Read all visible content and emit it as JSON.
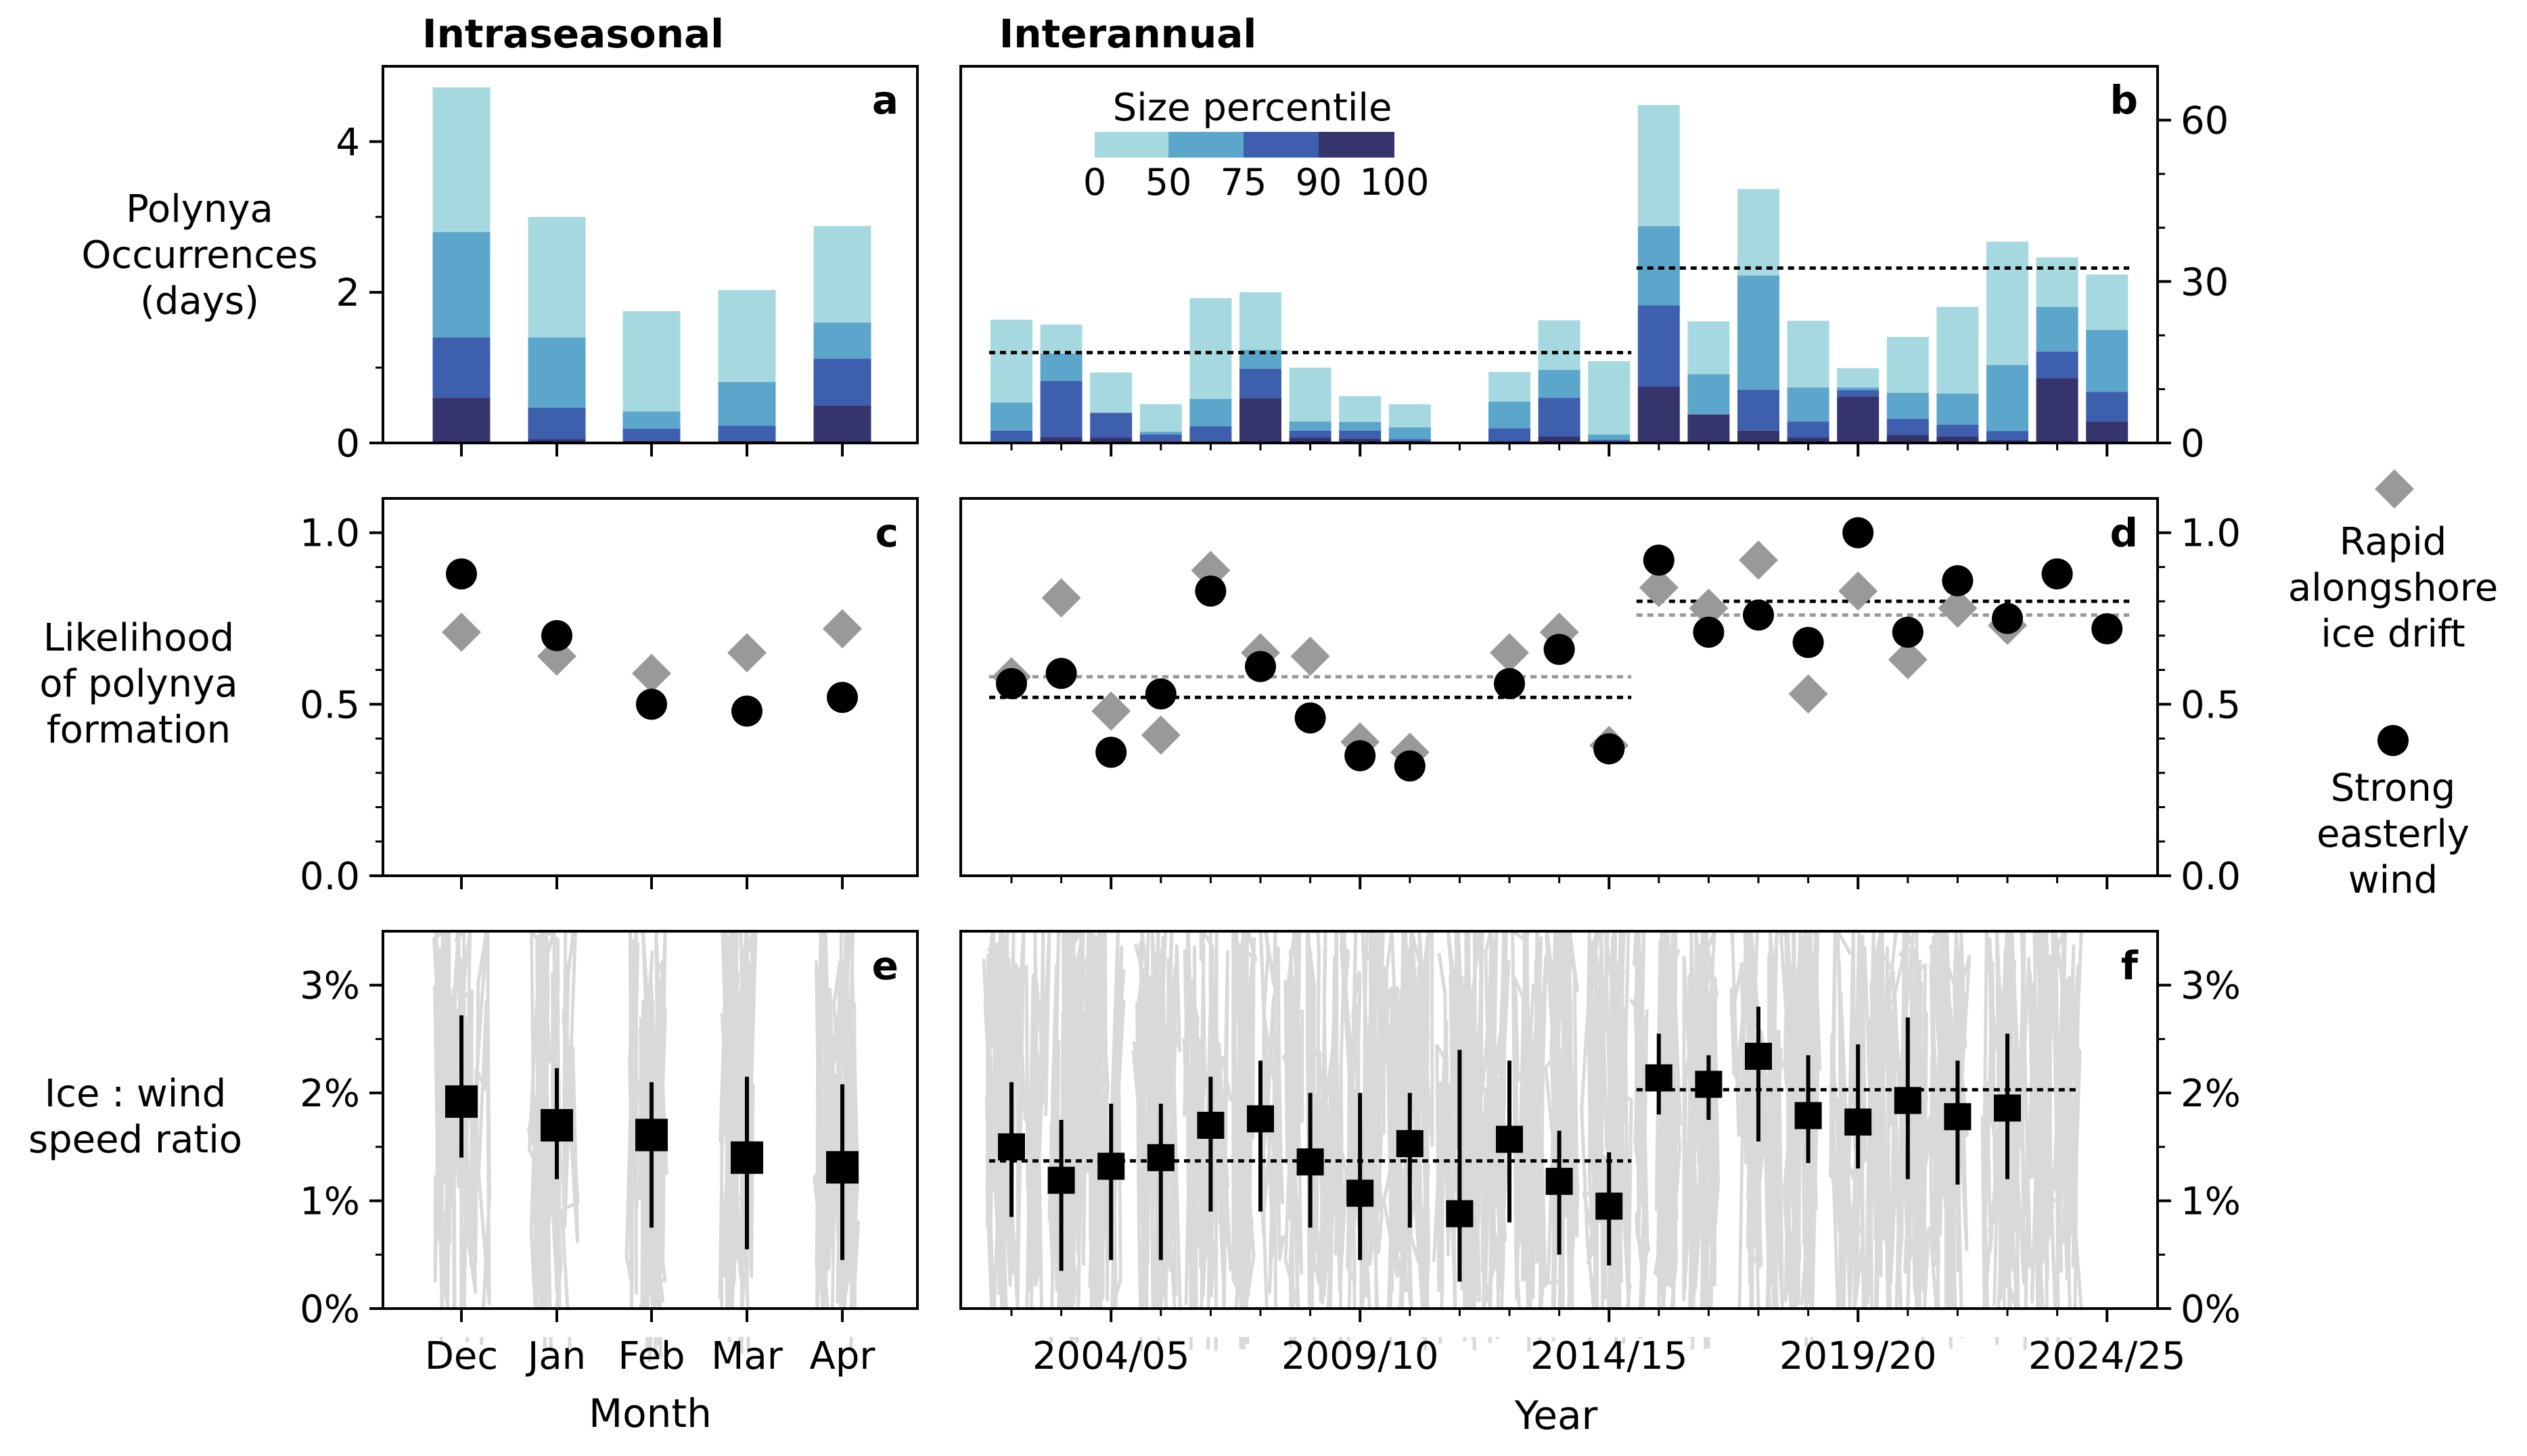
{
  "headers": {
    "left": "Intraseasonal",
    "right": "Interannual"
  },
  "panel_letters": [
    "a",
    "b",
    "c",
    "d",
    "e",
    "f"
  ],
  "row_labels": {
    "occurrence": [
      "Polynya",
      "Occurrences",
      "(days)"
    ],
    "likelihood": [
      "Likelihood",
      "of polynya",
      "formation"
    ],
    "ratio": [
      "Ice : wind",
      "speed ratio"
    ]
  },
  "legend": {
    "size_title": "Size percentile",
    "size_ticks": [
      "0",
      "50",
      "75",
      "90",
      "100"
    ],
    "drift_label": [
      "Rapid",
      "alongshore",
      "ice drift"
    ],
    "wind_label": [
      "Strong",
      "easterly",
      "wind"
    ]
  },
  "axes": {
    "month_xlabel": "Month",
    "year_xlabel": "Year",
    "month_ticks": [
      "Dec",
      "Jan",
      "Feb",
      "Mar",
      "Apr"
    ],
    "year_ticks": [
      "2004/05",
      "2009/10",
      "2014/15",
      "2019/20",
      "2024/25"
    ],
    "a_yticks": [
      "0",
      "2",
      "4"
    ],
    "b_yticks": [
      "0",
      "30",
      "60"
    ],
    "cd_yticks": [
      "0.0",
      "0.5",
      "1.0"
    ],
    "ef_yticks": [
      "0%",
      "1%",
      "2%",
      "3%"
    ]
  },
  "colors": {
    "p0_50": "#a6d9df",
    "p50_75": "#5ca5cb",
    "p75_90": "#3d5fae",
    "p90_100": "#35346d",
    "drift": "#999999",
    "wind": "#000000",
    "spread": "#d9d9d9"
  },
  "chart_data": [
    {
      "panel": "a",
      "type": "bar",
      "stacked": true,
      "categories": [
        "Dec",
        "Jan",
        "Feb",
        "Mar",
        "Apr"
      ],
      "ylim": [
        0,
        5
      ],
      "series": [
        {
          "name": "90-100",
          "values": [
            0.6,
            0.05,
            0.03,
            0.03,
            0.5
          ]
        },
        {
          "name": "75-90",
          "values": [
            0.8,
            0.42,
            0.16,
            0.2,
            0.62
          ]
        },
        {
          "name": "50-75",
          "values": [
            1.4,
            0.93,
            0.23,
            0.58,
            0.48
          ]
        },
        {
          "name": "0-50",
          "values": [
            1.92,
            1.6,
            1.33,
            1.22,
            1.28
          ]
        }
      ]
    },
    {
      "panel": "b",
      "type": "bar",
      "stacked": true,
      "x": [
        2002,
        2003,
        2004,
        2005,
        2006,
        2007,
        2008,
        2009,
        2010,
        2011,
        2012,
        2013,
        2014,
        2015,
        2016,
        2017,
        2018,
        2019,
        2020,
        2021,
        2022,
        2023,
        2024
      ],
      "ylim": [
        0,
        70
      ],
      "series": [
        {
          "name": "90-100",
          "values": [
            0.3,
            1.1,
            1.0,
            0.3,
            0.3,
            8.3,
            1.0,
            0.8,
            0.4,
            0,
            0,
            1.2,
            0,
            10.5,
            5.3,
            2.3,
            1.0,
            8.6,
            1.5,
            1.2,
            0.5,
            12.0,
            4.0
          ]
        },
        {
          "name": "75-90",
          "values": [
            2.0,
            10.4,
            4.6,
            1.3,
            2.8,
            5.5,
            1.3,
            1.5,
            0.3,
            0,
            2.7,
            7.2,
            0.6,
            15.1,
            0,
            7.6,
            3.0,
            1.2,
            3.0,
            2.2,
            1.7,
            5.0,
            5.5
          ]
        },
        {
          "name": "50-75",
          "values": [
            5.2,
            5.1,
            0,
            0.5,
            5.1,
            3.5,
            1.7,
            1.6,
            2.2,
            0,
            5.0,
            5.2,
            1.0,
            14.7,
            7.5,
            21.2,
            6.3,
            0.5,
            4.8,
            5.8,
            12.3,
            8.3,
            11.5
          ]
        },
        {
          "name": "0-50",
          "values": [
            15.4,
            5.4,
            7.5,
            5.1,
            18.7,
            10.7,
            10.0,
            4.8,
            4.3,
            0,
            5.5,
            9.2,
            13.6,
            22.5,
            9.8,
            16.1,
            12.4,
            3.6,
            10.4,
            16.1,
            22.9,
            9.2,
            10.3
          ]
        }
      ],
      "reference_lines": [
        {
          "x_range": [
            2002,
            2014
          ],
          "value": 16.8
        },
        {
          "x_range": [
            2015,
            2024
          ],
          "value": 32.5
        }
      ]
    },
    {
      "panel": "c",
      "type": "scatter",
      "categories": [
        "Dec",
        "Jan",
        "Feb",
        "Mar",
        "Apr"
      ],
      "ylim": [
        0,
        1.1
      ],
      "series": [
        {
          "name": "Rapid alongshore ice drift",
          "values": [
            0.71,
            0.64,
            0.59,
            0.65,
            0.72
          ]
        },
        {
          "name": "Strong easterly wind",
          "values": [
            0.88,
            0.7,
            0.5,
            0.48,
            0.52
          ]
        }
      ]
    },
    {
      "panel": "d",
      "type": "scatter",
      "x": [
        2002,
        2003,
        2004,
        2005,
        2006,
        2007,
        2008,
        2009,
        2010,
        2011,
        2012,
        2013,
        2014,
        2015,
        2016,
        2017,
        2018,
        2019,
        2020,
        2021,
        2022,
        2023,
        2024
      ],
      "ylim": [
        0,
        1.1
      ],
      "series": [
        {
          "name": "Rapid alongshore ice drift",
          "values": [
            0.58,
            0.81,
            0.48,
            0.41,
            0.89,
            0.65,
            0.64,
            0.39,
            0.36,
            null,
            0.65,
            0.71,
            0.38,
            0.84,
            0.78,
            0.92,
            0.53,
            0.83,
            0.63,
            0.78,
            0.73,
            null,
            null
          ]
        },
        {
          "name": "Strong easterly wind",
          "values": [
            0.56,
            0.59,
            0.36,
            0.53,
            0.83,
            0.61,
            0.46,
            0.35,
            0.32,
            null,
            0.56,
            0.66,
            0.37,
            0.92,
            0.71,
            0.76,
            0.68,
            1.0,
            0.71,
            0.86,
            0.75,
            0.88,
            0.72
          ]
        }
      ],
      "reference_lines": [
        {
          "series": "Rapid alongshore ice drift",
          "x_range": [
            2002,
            2014
          ],
          "value": 0.58
        },
        {
          "series": "Strong easterly wind",
          "x_range": [
            2002,
            2014
          ],
          "value": 0.52
        },
        {
          "series": "Rapid alongshore ice drift",
          "x_range": [
            2015,
            2024
          ],
          "value": 0.76
        },
        {
          "series": "Strong easterly wind",
          "x_range": [
            2015,
            2024
          ],
          "value": 0.8
        }
      ]
    },
    {
      "panel": "e",
      "type": "scatter",
      "categories": [
        "Dec",
        "Jan",
        "Feb",
        "Mar",
        "Apr"
      ],
      "ylim": [
        0,
        3.5
      ],
      "unit": "%",
      "median": [
        1.92,
        1.7,
        1.61,
        1.4,
        1.31
      ],
      "lower": [
        1.4,
        1.2,
        0.75,
        0.55,
        0.45
      ],
      "upper": [
        2.72,
        2.23,
        2.1,
        2.15,
        2.08
      ]
    },
    {
      "panel": "f",
      "type": "scatter",
      "x": [
        2002,
        2003,
        2004,
        2005,
        2006,
        2007,
        2008,
        2009,
        2010,
        2011,
        2012,
        2013,
        2014,
        2015,
        2016,
        2017,
        2018,
        2019,
        2020,
        2021,
        2022,
        2023
      ],
      "ylim": [
        0,
        3.5
      ],
      "unit": "%",
      "median": [
        1.5,
        1.19,
        1.32,
        1.4,
        1.7,
        1.76,
        1.36,
        1.07,
        1.53,
        0.88,
        1.57,
        1.18,
        0.95,
        2.14,
        2.08,
        2.34,
        1.79,
        1.73,
        1.93,
        1.78,
        1.86,
        null
      ],
      "lower": [
        0.85,
        0.35,
        0.45,
        0.45,
        0.9,
        0.9,
        0.75,
        0.45,
        0.75,
        0.25,
        0.8,
        0.5,
        0.4,
        1.8,
        1.75,
        1.55,
        1.35,
        1.3,
        1.2,
        1.15,
        1.2,
        null
      ],
      "upper": [
        2.1,
        1.75,
        1.9,
        1.9,
        2.15,
        2.3,
        2.0,
        2.0,
        2.0,
        2.4,
        2.3,
        1.65,
        1.45,
        2.55,
        2.35,
        2.8,
        2.35,
        2.45,
        2.7,
        2.3,
        2.55,
        null
      ],
      "reference_lines": [
        {
          "x_range": [
            2002,
            2014
          ],
          "value": 1.37
        },
        {
          "x_range": [
            2015,
            2023
          ],
          "value": 2.03
        }
      ]
    }
  ]
}
